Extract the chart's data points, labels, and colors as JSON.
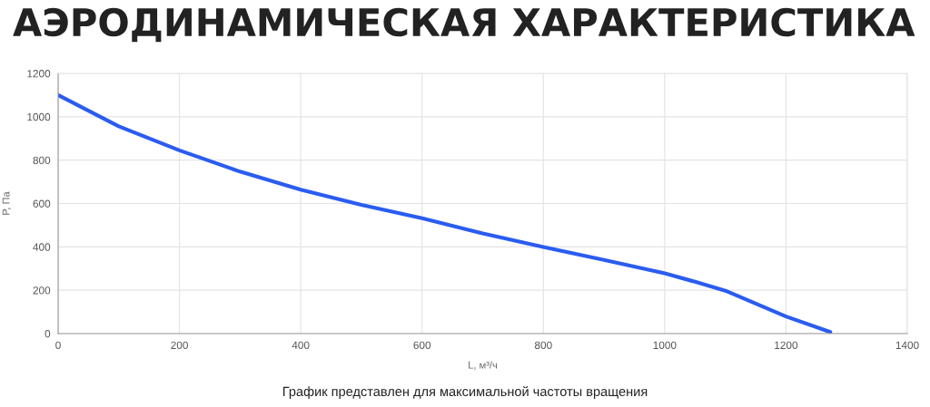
{
  "chart_data": {
    "type": "line",
    "title": "АЭРОДИНАМИЧЕСКАЯ ХАРАКТЕРИСТИКА",
    "xlabel": "L, м³/ч",
    "ylabel": "P, Па",
    "annotations": [
      "График представлен для максимальной частоты вращения"
    ],
    "series": [
      {
        "color": "#2a5cf0",
        "x": [
          0,
          100,
          200,
          300,
          400,
          500,
          600,
          700,
          800,
          900,
          1000,
          1050,
          1100,
          1200,
          1273
        ],
        "values": [
          1100,
          956,
          845,
          747,
          664,
          594,
          532,
          462,
          399,
          340,
          278,
          239,
          198,
          79,
          7
        ]
      }
    ],
    "xlim": [
      0,
      1400
    ],
    "xticks": [
      0,
      200,
      400,
      600,
      800,
      1000,
      1200,
      1400
    ],
    "ylim": [
      0,
      1200
    ],
    "yticks": [
      0,
      200,
      400,
      600,
      800,
      1000,
      1200
    ],
    "grid": true,
    "legend": false,
    "marker": "none",
    "line_style": "solid"
  }
}
